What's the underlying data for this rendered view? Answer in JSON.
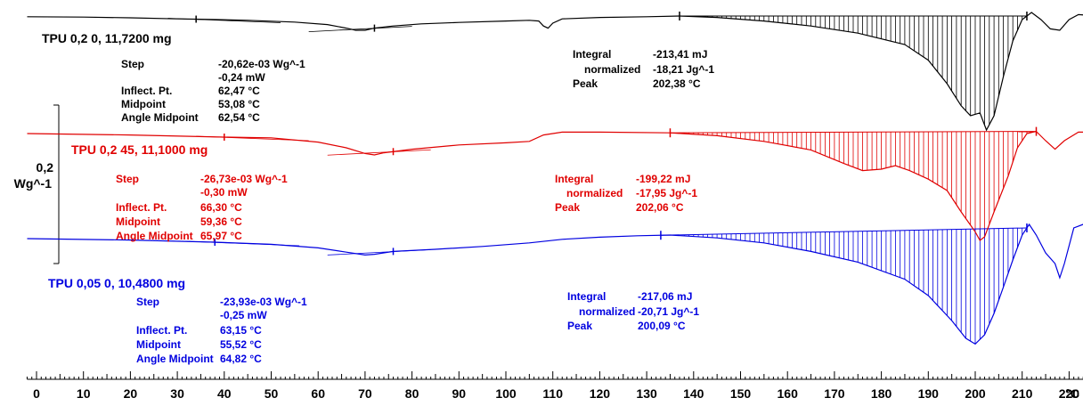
{
  "chart_data": {
    "type": "line",
    "xlabel": "",
    "x_unit": "°C",
    "xlim": [
      -2,
      228
    ],
    "x_ticks": [
      0,
      10,
      20,
      30,
      40,
      50,
      60,
      70,
      80,
      90,
      100,
      110,
      120,
      130,
      140,
      150,
      160,
      170,
      180,
      190,
      200,
      210,
      220
    ],
    "y_scale_bar": {
      "value": "0,2",
      "unit": "Wg^-1"
    },
    "grid": false,
    "series": [
      {
        "name": "TPU 0,2 0, 11,7200 mg",
        "color": "#000000",
        "baseline": 0,
        "points": [
          [
            -2,
            -0.01
          ],
          [
            10,
            -0.015
          ],
          [
            20,
            -0.025
          ],
          [
            30,
            -0.04
          ],
          [
            35,
            -0.045
          ],
          [
            45,
            -0.06
          ],
          [
            55,
            -0.085
          ],
          [
            62,
            -0.12
          ],
          [
            66,
            -0.17
          ],
          [
            68,
            -0.2
          ],
          [
            70,
            -0.2
          ],
          [
            72,
            -0.17
          ],
          [
            76,
            -0.14
          ],
          [
            82,
            -0.11
          ],
          [
            90,
            -0.09
          ],
          [
            100,
            -0.07
          ],
          [
            105,
            -0.06
          ],
          [
            107,
            -0.07
          ],
          [
            108,
            -0.14
          ],
          [
            109,
            -0.17
          ],
          [
            110,
            -0.1
          ],
          [
            112,
            -0.04
          ],
          [
            120,
            -0.02
          ],
          [
            130,
            -0.01
          ],
          [
            137,
            0
          ],
          [
            145,
            -0.02
          ],
          [
            155,
            -0.07
          ],
          [
            165,
            -0.14
          ],
          [
            175,
            -0.24
          ],
          [
            185,
            -0.4
          ],
          [
            190,
            -0.62
          ],
          [
            194,
            -0.95
          ],
          [
            197,
            -1.26
          ],
          [
            199,
            -1.4
          ],
          [
            201,
            -1.36
          ],
          [
            202.4,
            -1.6
          ],
          [
            204,
            -1.4
          ],
          [
            206,
            -0.85
          ],
          [
            208,
            -0.35
          ],
          [
            210,
            -0.05
          ],
          [
            212,
            0.05
          ],
          [
            214,
            -0.05
          ],
          [
            216,
            -0.18
          ],
          [
            218,
            -0.2
          ],
          [
            220,
            -0.05
          ],
          [
            222,
            0.02
          ],
          [
            224,
            0.01
          ],
          [
            228,
            0.01
          ]
        ],
        "integral_range": [
          137,
          211
        ],
        "glass_transition": {
          "step": "-20,62e-03 Wg^-1",
          "step_mw": "-0,24 mW",
          "inflect_pt": "62,47 °C",
          "midpoint": "53,08 °C",
          "angle_midpoint": "62,54 °C"
        },
        "melting": {
          "integral": "-213,41 mJ",
          "normalized": "-18,21 Jg^-1",
          "peak": "202,38 °C"
        }
      },
      {
        "name": "TPU 0,2 45, 11,1000 mg",
        "color": "#e00000",
        "baseline": 0,
        "points": [
          [
            -2,
            0
          ],
          [
            20,
            -0.02
          ],
          [
            40,
            -0.05
          ],
          [
            50,
            -0.06
          ],
          [
            60,
            -0.12
          ],
          [
            66,
            -0.2
          ],
          [
            70,
            -0.28
          ],
          [
            72,
            -0.3
          ],
          [
            74,
            -0.27
          ],
          [
            80,
            -0.22
          ],
          [
            90,
            -0.16
          ],
          [
            100,
            -0.13
          ],
          [
            105,
            -0.11
          ],
          [
            108,
            -0.02
          ],
          [
            112,
            0.02
          ],
          [
            120,
            0.02
          ],
          [
            135,
            0.01
          ],
          [
            145,
            -0.03
          ],
          [
            155,
            -0.11
          ],
          [
            165,
            -0.23
          ],
          [
            172,
            -0.42
          ],
          [
            176,
            -0.52
          ],
          [
            180,
            -0.5
          ],
          [
            183,
            -0.45
          ],
          [
            186,
            -0.52
          ],
          [
            190,
            -0.64
          ],
          [
            194,
            -0.8
          ],
          [
            197,
            -1.1
          ],
          [
            200,
            -1.38
          ],
          [
            201,
            -1.5
          ],
          [
            202,
            -1.45
          ],
          [
            204,
            -1.1
          ],
          [
            207,
            -0.6
          ],
          [
            209,
            -0.2
          ],
          [
            211,
            0
          ],
          [
            213,
            0.03
          ],
          [
            215,
            -0.1
          ],
          [
            217,
            -0.22
          ],
          [
            219,
            -0.1
          ],
          [
            222,
            0.02
          ],
          [
            228,
            0.02
          ]
        ],
        "integral_range": [
          135,
          213
        ],
        "glass_transition": {
          "step": "-26,73e-03 Wg^-1",
          "step_mw": "-0,30 mW",
          "inflect_pt": "66,30 °C",
          "midpoint": "59,36 °C",
          "angle_midpoint": "65,97 °C"
        },
        "melting": {
          "integral": "-199,22 mJ",
          "normalized": "-17,95 Jg^-1",
          "peak": "202,06 °C"
        }
      },
      {
        "name": "TPU 0,05 0, 10,4800 mg",
        "color": "#0000e0",
        "baseline": 0,
        "points": [
          [
            -2,
            0
          ],
          [
            20,
            -0.02
          ],
          [
            38,
            -0.05
          ],
          [
            50,
            -0.08
          ],
          [
            60,
            -0.13
          ],
          [
            66,
            -0.19
          ],
          [
            70,
            -0.23
          ],
          [
            72,
            -0.22
          ],
          [
            76,
            -0.18
          ],
          [
            85,
            -0.15
          ],
          [
            95,
            -0.11
          ],
          [
            105,
            -0.06
          ],
          [
            112,
            -0.01
          ],
          [
            120,
            0.02
          ],
          [
            128,
            0.04
          ],
          [
            135,
            0.05
          ],
          [
            145,
            0.01
          ],
          [
            155,
            -0.06
          ],
          [
            165,
            -0.18
          ],
          [
            175,
            -0.33
          ],
          [
            185,
            -0.57
          ],
          [
            190,
            -0.8
          ],
          [
            195,
            -1.15
          ],
          [
            198,
            -1.4
          ],
          [
            200,
            -1.48
          ],
          [
            202,
            -1.35
          ],
          [
            204,
            -1.05
          ],
          [
            206,
            -0.68
          ],
          [
            208,
            -0.3
          ],
          [
            210,
            0.05
          ],
          [
            211.5,
            0.2
          ],
          [
            213,
            0.05
          ],
          [
            215,
            -0.2
          ],
          [
            217,
            -0.35
          ],
          [
            218,
            -0.55
          ],
          [
            219,
            -0.35
          ],
          [
            221,
            0.15
          ],
          [
            223,
            0.2
          ],
          [
            228,
            0.18
          ]
        ],
        "integral_range": [
          133,
          211
        ],
        "glass_transition": {
          "step": "-23,93e-03 Wg^-1",
          "step_mw": "-0,25 mW",
          "inflect_pt": "63,15 °C",
          "midpoint": "55,52 °C",
          "angle_midpoint": "64,82 °C"
        },
        "melting": {
          "integral": "-217,06 mJ",
          "normalized": "-20,71 Jg^-1",
          "peak": "200,09 °C"
        }
      }
    ],
    "annotation_labels": {
      "step": "Step",
      "inflect_pt": "Inflect. Pt.",
      "midpoint": "Midpoint",
      "angle_midpoint": "Angle Midpoint",
      "integral": "Integral",
      "normalized": "normalized",
      "peak": "Peak"
    }
  }
}
